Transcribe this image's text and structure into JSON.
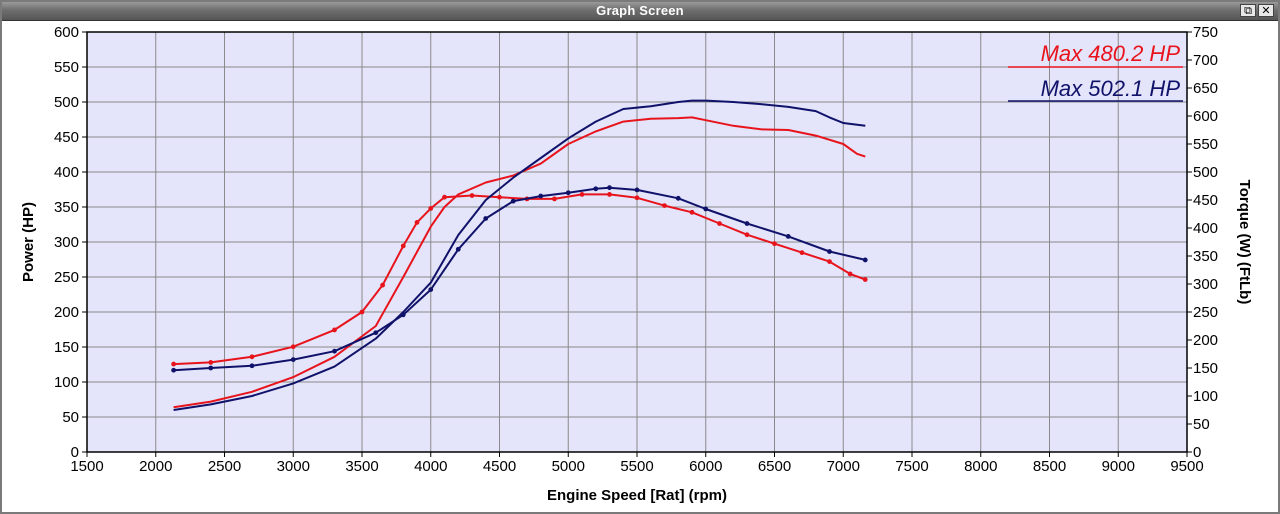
{
  "window": {
    "title": "Graph Screen",
    "restore_glyph": "⧉",
    "close_glyph": "✕"
  },
  "colors": {
    "plot_background": "#e4e4fb",
    "grid": "#8a8a8a",
    "run1": "#e8141c",
    "run2": "#10126a"
  },
  "chart_data": {
    "type": "line",
    "xlabel": "Engine Speed [Rat] (rpm)",
    "ylabel": "Power (HP)",
    "y2label": "Torque (W) (FtLb)",
    "xlim": [
      1500,
      9500
    ],
    "ylim": [
      0,
      600
    ],
    "y2lim": [
      0,
      750
    ],
    "xticks": [
      "1500",
      "2000",
      "2500",
      "3000",
      "3500",
      "4000",
      "4500",
      "5000",
      "5500",
      "6000",
      "6500",
      "7000",
      "7500",
      "8000",
      "8500",
      "9000",
      "9500"
    ],
    "yticks": [
      "0",
      "50",
      "100",
      "150",
      "200",
      "250",
      "300",
      "350",
      "400",
      "450",
      "500",
      "550",
      "600"
    ],
    "y2ticks": [
      "0",
      "50",
      "100",
      "150",
      "200",
      "250",
      "300",
      "350",
      "400",
      "450",
      "500",
      "550",
      "600",
      "650",
      "700",
      "750"
    ],
    "grid": true,
    "legend": [
      {
        "text": "Max 480.2 HP",
        "color": "#e8141c"
      },
      {
        "text": "Max 502.1 HP",
        "color": "#10126a"
      }
    ],
    "series": [
      {
        "name": "Max 480.2 HP",
        "kind": "power",
        "axis": "left",
        "color": "#e8141c",
        "x": [
          2130,
          2400,
          2700,
          3000,
          3300,
          3600,
          3800,
          4000,
          4100,
          4200,
          4400,
          4600,
          4800,
          5000,
          5200,
          5400,
          5600,
          5800,
          5900,
          6000,
          6200,
          6400,
          6600,
          6800,
          7000,
          7100,
          7160
        ],
        "y": [
          64,
          72,
          86,
          107,
          136,
          180,
          250,
          322,
          350,
          368,
          385,
          395,
          412,
          440,
          458,
          472,
          476,
          477,
          478,
          474,
          466,
          461,
          460,
          452,
          440,
          426,
          422
        ]
      },
      {
        "name": "Max 480.2 HP torque",
        "kind": "torque",
        "axis": "right",
        "color": "#e8141c",
        "x": [
          2130,
          2400,
          2700,
          3000,
          3300,
          3500,
          3650,
          3800,
          3900,
          4000,
          4100,
          4300,
          4500,
          4700,
          4900,
          5100,
          5300,
          5500,
          5700,
          5900,
          6100,
          6300,
          6500,
          6700,
          6900,
          7050,
          7160
        ],
        "y": [
          157,
          160,
          170,
          188,
          218,
          250,
          298,
          368,
          410,
          435,
          455,
          458,
          455,
          452,
          452,
          460,
          460,
          454,
          440,
          428,
          408,
          388,
          372,
          356,
          340,
          318,
          308
        ]
      },
      {
        "name": "Max 502.1 HP",
        "kind": "power",
        "axis": "left",
        "color": "#10126a",
        "x": [
          2130,
          2400,
          2700,
          3000,
          3300,
          3600,
          3800,
          4000,
          4200,
          4400,
          4600,
          4800,
          5000,
          5200,
          5400,
          5600,
          5800,
          5900,
          6000,
          6200,
          6400,
          6600,
          6800,
          6900,
          7000,
          7160
        ],
        "y": [
          60,
          68,
          80,
          98,
          122,
          162,
          200,
          242,
          310,
          360,
          392,
          420,
          448,
          472,
          490,
          494,
          500,
          502,
          502,
          500,
          497,
          493,
          487,
          478,
          470,
          466
        ]
      },
      {
        "name": "Max 502.1 HP torque",
        "kind": "torque",
        "axis": "right",
        "color": "#10126a",
        "x": [
          2130,
          2400,
          2700,
          3000,
          3300,
          3600,
          3800,
          4000,
          4200,
          4400,
          4600,
          4800,
          5000,
          5200,
          5300,
          5500,
          5800,
          6000,
          6300,
          6600,
          6900,
          7160
        ],
        "y": [
          146,
          150,
          154,
          165,
          180,
          213,
          245,
          290,
          362,
          417,
          448,
          457,
          463,
          470,
          472,
          468,
          453,
          434,
          408,
          385,
          358,
          343
        ]
      }
    ]
  }
}
